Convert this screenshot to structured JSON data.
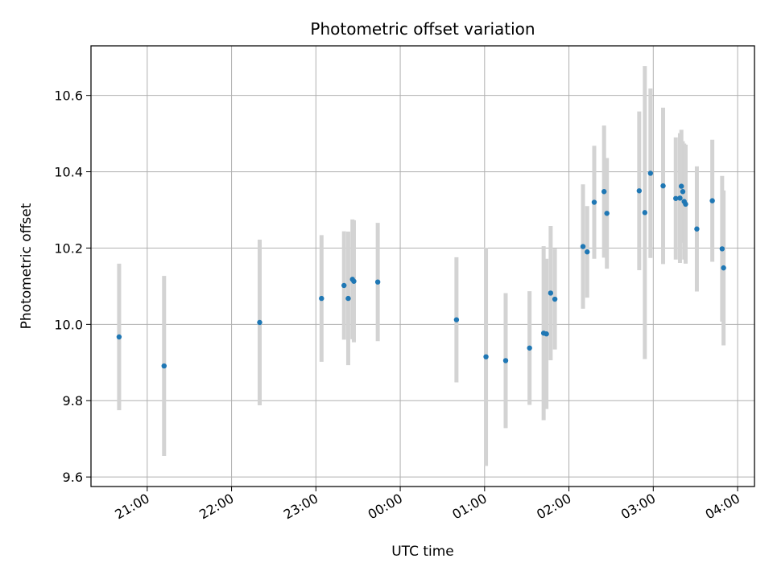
{
  "chart_data": {
    "type": "scatter",
    "title": "Photometric offset variation",
    "xlabel": "UTC time",
    "ylabel": "Photometric offset",
    "x_unit": "UTC time",
    "xlim": [
      "20:20",
      "04:12"
    ],
    "ylim": [
      9.575,
      10.73
    ],
    "x_ticks": [
      "21:00",
      "22:00",
      "23:00",
      "00:00",
      "01:00",
      "02:00",
      "03:00",
      "04:00"
    ],
    "y_ticks": [
      9.6,
      9.8,
      10.0,
      10.2,
      10.4,
      10.6
    ],
    "grid": true,
    "point_color": "#1f77b4",
    "errorbar_color": "#d3d3d3",
    "points": [
      {
        "x": "20:40",
        "y": 9.967,
        "err": 0.192
      },
      {
        "x": "21:12",
        "y": 9.891,
        "err": 0.236
      },
      {
        "x": "22:20",
        "y": 10.005,
        "err": 0.217
      },
      {
        "x": "23:04",
        "y": 10.068,
        "err": 0.166
      },
      {
        "x": "23:20",
        "y": 10.102,
        "err": 0.142
      },
      {
        "x": "23:23",
        "y": 10.068,
        "err": 0.175
      },
      {
        "x": "23:26",
        "y": 10.118,
        "err": 0.157
      },
      {
        "x": "23:27",
        "y": 10.113,
        "err": 0.16
      },
      {
        "x": "23:44",
        "y": 10.111,
        "err": 0.155
      },
      {
        "x": "00:40",
        "y": 10.012,
        "err": 0.164
      },
      {
        "x": "01:01",
        "y": 9.915,
        "err": 0.286
      },
      {
        "x": "01:15",
        "y": 9.905,
        "err": 0.177
      },
      {
        "x": "01:32",
        "y": 9.938,
        "err": 0.149
      },
      {
        "x": "01:42",
        "y": 9.977,
        "err": 0.228
      },
      {
        "x": "01:44",
        "y": 9.975,
        "err": 0.197
      },
      {
        "x": "01:47",
        "y": 10.082,
        "err": 0.176
      },
      {
        "x": "01:50",
        "y": 10.066,
        "err": 0.132
      },
      {
        "x": "02:10",
        "y": 10.204,
        "err": 0.163
      },
      {
        "x": "02:13",
        "y": 10.19,
        "err": 0.12
      },
      {
        "x": "02:18",
        "y": 10.32,
        "err": 0.148
      },
      {
        "x": "02:25",
        "y": 10.348,
        "err": 0.173
      },
      {
        "x": "02:27",
        "y": 10.291,
        "err": 0.145
      },
      {
        "x": "02:50",
        "y": 10.35,
        "err": 0.208
      },
      {
        "x": "02:54",
        "y": 10.293,
        "err": 0.384
      },
      {
        "x": "02:58",
        "y": 10.396,
        "err": 0.222
      },
      {
        "x": "03:07",
        "y": 10.363,
        "err": 0.205
      },
      {
        "x": "03:16",
        "y": 10.33,
        "err": 0.16
      },
      {
        "x": "03:19",
        "y": 10.331,
        "err": 0.17
      },
      {
        "x": "03:20",
        "y": 10.362,
        "err": 0.148
      },
      {
        "x": "03:21",
        "y": 10.348,
        "err": 0.132
      },
      {
        "x": "03:22",
        "y": 10.322,
        "err": 0.152
      },
      {
        "x": "03:23",
        "y": 10.315,
        "err": 0.156
      },
      {
        "x": "03:31",
        "y": 10.25,
        "err": 0.164
      },
      {
        "x": "03:42",
        "y": 10.324,
        "err": 0.16
      },
      {
        "x": "03:49",
        "y": 10.198,
        "err": 0.191
      },
      {
        "x": "03:50",
        "y": 10.148,
        "err": 0.203
      }
    ]
  }
}
